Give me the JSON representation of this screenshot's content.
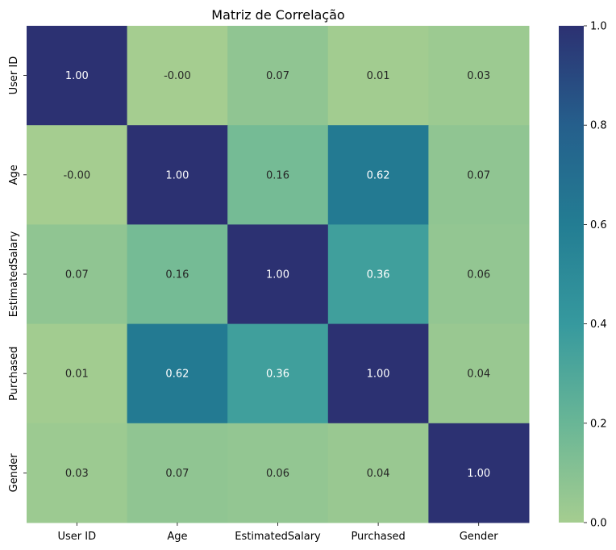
{
  "chart_data": {
    "type": "heatmap",
    "title": "Matriz de Correlação",
    "xlabel": "",
    "ylabel": "",
    "categories": [
      "User ID",
      "Age",
      "EstimatedSalary",
      "Purchased",
      "Gender"
    ],
    "matrix": [
      [
        1.0,
        -0.0,
        0.07,
        0.01,
        0.03
      ],
      [
        -0.0,
        1.0,
        0.16,
        0.62,
        0.07
      ],
      [
        0.07,
        0.16,
        1.0,
        0.36,
        0.06
      ],
      [
        0.01,
        0.62,
        0.36,
        1.0,
        0.04
      ],
      [
        0.03,
        0.07,
        0.06,
        0.04,
        1.0
      ]
    ],
    "labels": [
      [
        "1.00",
        "-0.00",
        "0.07",
        "0.01",
        "0.03"
      ],
      [
        "-0.00",
        "1.00",
        "0.16",
        "0.62",
        "0.07"
      ],
      [
        "0.07",
        "0.16",
        "1.00",
        "0.36",
        "0.06"
      ],
      [
        "0.01",
        "0.62",
        "0.36",
        "1.00",
        "0.04"
      ],
      [
        "0.03",
        "0.07",
        "0.06",
        "0.04",
        "1.00"
      ]
    ],
    "colorbar": {
      "range": [
        0,
        1
      ],
      "ticks": [
        "0.0",
        "0.2",
        "0.4",
        "0.6",
        "0.8",
        "1.0"
      ]
    },
    "colormap": {
      "name": "crest",
      "stops": [
        "#a5cd90",
        "#69b696",
        "#36999e",
        "#237d93",
        "#255f8c",
        "#2c3172"
      ]
    },
    "annotation_colors": {
      "light_text": "#ffffff",
      "dark_text": "#262626"
    }
  }
}
